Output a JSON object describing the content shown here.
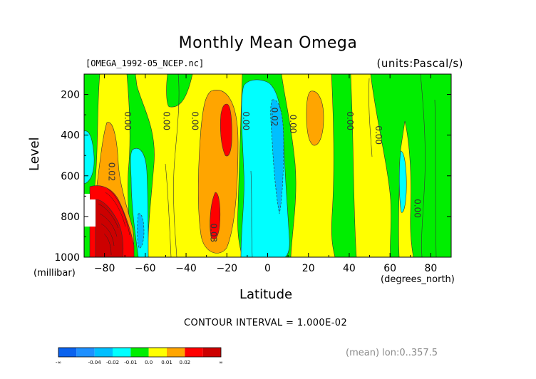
{
  "chart_data": {
    "type": "heatmap",
    "title": "Monthly Mean Omega",
    "subtitle_left": "[OMEGA_1992-05_NCEP.nc]",
    "subtitle_right": "(units:Pascal/s)",
    "xlabel": "Latitude",
    "xlabel_unit": "(degrees_north)",
    "ylabel": "Level",
    "ylabel_unit": "(millibar)",
    "xlim": [
      -90,
      90
    ],
    "ylim": [
      1000,
      100
    ],
    "x_ticks": [
      -80,
      -60,
      -40,
      -20,
      0,
      20,
      40,
      60,
      80
    ],
    "y_ticks": [
      200,
      400,
      600,
      800,
      1000
    ],
    "contour_interval_text": "CONTOUR INTERVAL = 1.000E-02",
    "mean_text": "(mean) lon:0..357.5",
    "colorbar": {
      "labels": [
        "-∞",
        "-0.04",
        "-0.02",
        "-0.01",
        "0.0",
        "0.01",
        "0.02",
        "∞"
      ],
      "colors": [
        "#0a62ee",
        "#1e90ff",
        "#00bfff",
        "#00ffff",
        "#00ee00",
        "#ffff00",
        "#ffa500",
        "#ff0000",
        "#cc0000"
      ]
    },
    "contour_labels": [
      {
        "text": "0.00",
        "x": -70,
        "y": 330
      },
      {
        "text": "0.02",
        "x": -78,
        "y": 580
      },
      {
        "text": "0.00",
        "x": -51,
        "y": 330
      },
      {
        "text": "0.00",
        "x": -37,
        "y": 330
      },
      {
        "text": "0.00",
        "x": -12,
        "y": 330
      },
      {
        "text": "0.02",
        "x": 2,
        "y": 310
      },
      {
        "text": "0.00",
        "x": 11,
        "y": 345
      },
      {
        "text": "0.00",
        "x": 39,
        "y": 330
      },
      {
        "text": "0.00",
        "x": 53,
        "y": 400
      },
      {
        "text": "0.00",
        "x": 72,
        "y": 760
      },
      {
        "text": "0.03",
        "x": -28,
        "y": 880
      }
    ]
  }
}
